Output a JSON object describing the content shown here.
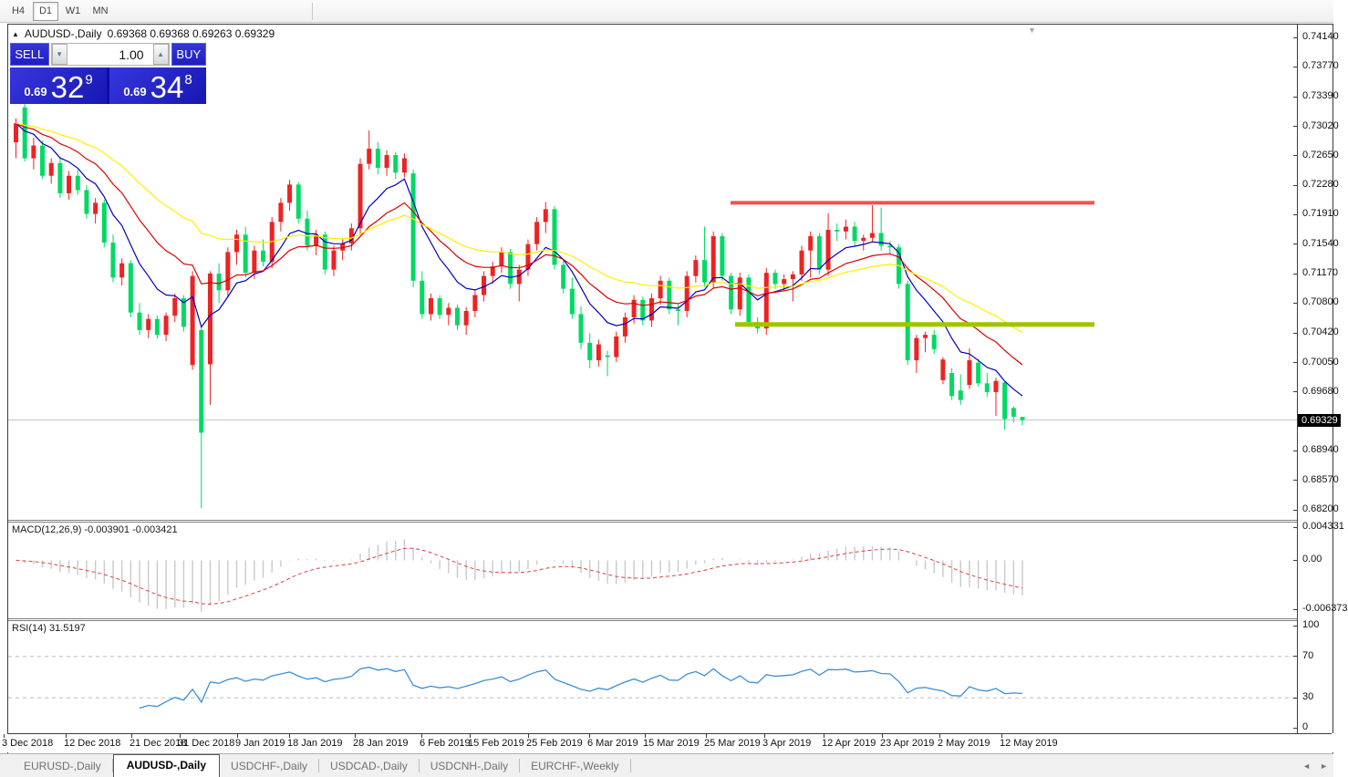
{
  "toolbar": {
    "timeframes": [
      {
        "label": "H4",
        "active": false
      },
      {
        "label": "D1",
        "active": true
      },
      {
        "label": "W1",
        "active": false
      },
      {
        "label": "MN",
        "active": false
      }
    ]
  },
  "chart": {
    "collapse_icon": "▲",
    "shift_icon": "▼",
    "symbol": "AUDUSD-,Daily",
    "ohlc_text": "0.69368 0.69368 0.69263 0.69329",
    "trade_panel": {
      "sell_label": "SELL",
      "buy_label": "BUY",
      "volume": "1.00",
      "spin_down_icon": "▼",
      "spin_up_icon": "▲",
      "sell_price_big": "0.69",
      "sell_price_mid": "32",
      "sell_price_sup": "9",
      "buy_price_big": "0.69",
      "buy_price_mid": "34",
      "buy_price_sup": "8"
    }
  },
  "price_axis": {
    "labels": [
      {
        "text": "0.74140",
        "value": 0.7414
      },
      {
        "text": "0.73770",
        "value": 0.7377
      },
      {
        "text": "0.73390",
        "value": 0.7339
      },
      {
        "text": "0.73020",
        "value": 0.7302
      },
      {
        "text": "0.72650",
        "value": 0.7265
      },
      {
        "text": "0.72280",
        "value": 0.7228
      },
      {
        "text": "0.71910",
        "value": 0.7191
      },
      {
        "text": "0.71540",
        "value": 0.7154
      },
      {
        "text": "0.71170",
        "value": 0.7117
      },
      {
        "text": "0.70800",
        "value": 0.708
      },
      {
        "text": "0.70420",
        "value": 0.7042
      },
      {
        "text": "0.70050",
        "value": 0.7005
      },
      {
        "text": "0.69680",
        "value": 0.6968
      },
      {
        "text": "0.68940",
        "value": 0.6894
      },
      {
        "text": "0.68570",
        "value": 0.6857
      },
      {
        "text": "0.68200",
        "value": 0.682
      }
    ],
    "current_badge": {
      "text": "0.69329",
      "value": 0.69329
    }
  },
  "macd_axis": [
    {
      "text": "0.004331",
      "value": 0.004331
    },
    {
      "text": "0.00",
      "value": 0
    },
    {
      "text": "-0.006373",
      "value": -0.006373
    }
  ],
  "rsi_axis": [
    {
      "text": "100",
      "value": 100
    },
    {
      "text": "70",
      "value": 70
    },
    {
      "text": "30",
      "value": 30
    },
    {
      "text": "0",
      "value": 0
    }
  ],
  "indicators": {
    "macd_label": "MACD(12,26,9) -0.003901 -0.003421",
    "rsi_label": "RSI(14) 31.5197"
  },
  "date_axis": [
    {
      "text": "3 Dec 2018",
      "x": 2
    },
    {
      "text": "12 Dec 2018",
      "x": 70
    },
    {
      "text": "21 Dec 2018",
      "x": 142
    },
    {
      "text": "31 Dec 2018",
      "x": 195
    },
    {
      "text": "9 Jan 2019",
      "x": 258
    },
    {
      "text": "18 Jan 2019",
      "x": 315
    },
    {
      "text": "28 Jan 2019",
      "x": 387
    },
    {
      "text": "6 Feb 2019",
      "x": 460
    },
    {
      "text": "15 Feb 2019",
      "x": 513
    },
    {
      "text": "25 Feb 2019",
      "x": 577
    },
    {
      "text": "6 Mar 2019",
      "x": 644
    },
    {
      "text": "15 Mar 2019",
      "x": 705
    },
    {
      "text": "25 Mar 2019",
      "x": 772
    },
    {
      "text": "3 Apr 2019",
      "x": 836
    },
    {
      "text": "12 Apr 2019",
      "x": 901
    },
    {
      "text": "23 Apr 2019",
      "x": 965
    },
    {
      "text": "2 May 2019",
      "x": 1028
    },
    {
      "text": "12 May 2019",
      "x": 1096
    }
  ],
  "tabs": [
    {
      "label": "EURUSD-,Daily",
      "active": false
    },
    {
      "label": "AUDUSD-,Daily",
      "active": true
    },
    {
      "label": "USDCHF-,Daily",
      "active": false
    },
    {
      "label": "USDCAD-,Daily",
      "active": false
    },
    {
      "label": "USDCNH-,Daily",
      "active": false
    },
    {
      "label": "EURCHF-,Weekly",
      "active": false
    }
  ],
  "tab_scroll": {
    "left_icon": "◄",
    "right_icon": "►"
  },
  "chart_data": {
    "type": "candlestick",
    "symbol": "AUDUSD",
    "timeframe": "Daily",
    "x_range": [
      "3 Dec 2018",
      "13 May 2019"
    ],
    "price_range": [
      0.682,
      0.7414
    ],
    "bull_color": "#ee2222",
    "bear_color": "#00d964",
    "candles": [
      [
        0.7282,
        0.7312,
        0.7262,
        0.7306
      ],
      [
        0.7326,
        0.7345,
        0.7258,
        0.7262
      ],
      [
        0.7262,
        0.7288,
        0.7248,
        0.7278
      ],
      [
        0.7278,
        0.7284,
        0.7236,
        0.724
      ],
      [
        0.724,
        0.7262,
        0.723,
        0.7256
      ],
      [
        0.7256,
        0.7262,
        0.7212,
        0.7218
      ],
      [
        0.7218,
        0.7246,
        0.721,
        0.724
      ],
      [
        0.724,
        0.7248,
        0.7216,
        0.7222
      ],
      [
        0.7222,
        0.7228,
        0.7186,
        0.7192
      ],
      [
        0.7192,
        0.7212,
        0.718,
        0.7206
      ],
      [
        0.7206,
        0.721,
        0.715,
        0.7156
      ],
      [
        0.7156,
        0.7166,
        0.7106,
        0.7112
      ],
      [
        0.7112,
        0.7136,
        0.7102,
        0.713
      ],
      [
        0.713,
        0.7134,
        0.7062,
        0.7068
      ],
      [
        0.7068,
        0.708,
        0.704,
        0.7046
      ],
      [
        0.7046,
        0.7066,
        0.7036,
        0.706
      ],
      [
        0.706,
        0.7064,
        0.7035,
        0.704
      ],
      [
        0.704,
        0.7068,
        0.7032,
        0.7064
      ],
      [
        0.7064,
        0.7092,
        0.7056,
        0.7086
      ],
      [
        0.7086,
        0.709,
        0.7044,
        0.705
      ],
      [
        0.7002,
        0.712,
        0.6996,
        0.7114
      ],
      [
        0.7046,
        0.705,
        0.6822,
        0.6917
      ],
      [
        0.7003,
        0.712,
        0.6952,
        0.7117
      ],
      [
        0.7117,
        0.713,
        0.708,
        0.7096
      ],
      [
        0.7096,
        0.715,
        0.7088,
        0.7144
      ],
      [
        0.7144,
        0.7172,
        0.7128,
        0.7166
      ],
      [
        0.7166,
        0.7176,
        0.7112,
        0.7118
      ],
      [
        0.7118,
        0.7152,
        0.711,
        0.7146
      ],
      [
        0.7146,
        0.716,
        0.7126,
        0.7132
      ],
      [
        0.7132,
        0.7188,
        0.7124,
        0.7182
      ],
      [
        0.7182,
        0.7212,
        0.717,
        0.7206
      ],
      [
        0.7206,
        0.7235,
        0.7196,
        0.7229
      ],
      [
        0.7229,
        0.7232,
        0.718,
        0.7186
      ],
      [
        0.7186,
        0.7196,
        0.7146,
        0.7152
      ],
      [
        0.7152,
        0.7172,
        0.714,
        0.7166
      ],
      [
        0.7166,
        0.717,
        0.7116,
        0.7122
      ],
      [
        0.7122,
        0.7152,
        0.7114,
        0.7146
      ],
      [
        0.7146,
        0.716,
        0.7134,
        0.7155
      ],
      [
        0.7155,
        0.718,
        0.7146,
        0.7174
      ],
      [
        0.7174,
        0.7262,
        0.7166,
        0.7255
      ],
      [
        0.7255,
        0.7297,
        0.7248,
        0.7274
      ],
      [
        0.7274,
        0.7282,
        0.7242,
        0.725
      ],
      [
        0.725,
        0.7272,
        0.724,
        0.7266
      ],
      [
        0.7266,
        0.727,
        0.7236,
        0.7244
      ],
      [
        0.7244,
        0.7268,
        0.7238,
        0.7262
      ],
      [
        0.7243,
        0.7248,
        0.71,
        0.7108
      ],
      [
        0.7108,
        0.712,
        0.706,
        0.7066
      ],
      [
        0.7066,
        0.7092,
        0.7058,
        0.7086
      ],
      [
        0.7086,
        0.709,
        0.706,
        0.7065
      ],
      [
        0.7065,
        0.708,
        0.7052,
        0.7074
      ],
      [
        0.7074,
        0.7078,
        0.7046,
        0.7052
      ],
      [
        0.7052,
        0.7075,
        0.704,
        0.707
      ],
      [
        0.707,
        0.7096,
        0.7062,
        0.709
      ],
      [
        0.709,
        0.712,
        0.7082,
        0.7114
      ],
      [
        0.7114,
        0.7132,
        0.7104,
        0.7126
      ],
      [
        0.7126,
        0.715,
        0.7118,
        0.7144
      ],
      [
        0.7144,
        0.7148,
        0.7098,
        0.7104
      ],
      [
        0.7104,
        0.7128,
        0.7082,
        0.7122
      ],
      [
        0.7122,
        0.716,
        0.7114,
        0.7154
      ],
      [
        0.7154,
        0.7188,
        0.7146,
        0.7182
      ],
      [
        0.7182,
        0.7207,
        0.7168,
        0.7198
      ],
      [
        0.7198,
        0.7202,
        0.7122,
        0.7128
      ],
      [
        0.7128,
        0.7136,
        0.7092,
        0.7098
      ],
      [
        0.7098,
        0.7112,
        0.706,
        0.7066
      ],
      [
        0.7066,
        0.7076,
        0.7022,
        0.703
      ],
      [
        0.703,
        0.7042,
        0.6998,
        0.7008
      ],
      [
        0.7008,
        0.7034,
        0.7,
        0.7028
      ],
      [
        0.7014,
        0.702,
        0.6988,
        0.7012
      ],
      [
        0.7012,
        0.7044,
        0.7006,
        0.7038
      ],
      [
        0.7038,
        0.7068,
        0.703,
        0.7062
      ],
      [
        0.7062,
        0.709,
        0.7054,
        0.7084
      ],
      [
        0.7084,
        0.7088,
        0.7052,
        0.7058
      ],
      [
        0.7058,
        0.7092,
        0.705,
        0.7086
      ],
      [
        0.7086,
        0.7114,
        0.7078,
        0.7108
      ],
      [
        0.7108,
        0.7112,
        0.7066,
        0.7072
      ],
      [
        0.7072,
        0.7078,
        0.7052,
        0.707
      ],
      [
        0.707,
        0.712,
        0.7062,
        0.7114
      ],
      [
        0.7114,
        0.714,
        0.7106,
        0.7134
      ],
      [
        0.7134,
        0.7176,
        0.71,
        0.7106
      ],
      [
        0.7106,
        0.717,
        0.7098,
        0.7164
      ],
      [
        0.7164,
        0.7168,
        0.7108,
        0.7114
      ],
      [
        0.7114,
        0.7118,
        0.7066,
        0.7072
      ],
      [
        0.7072,
        0.7118,
        0.7064,
        0.7112
      ],
      [
        0.7112,
        0.7116,
        0.705,
        0.7056
      ],
      [
        0.7056,
        0.7062,
        0.7042,
        0.7048
      ],
      [
        0.7048,
        0.7124,
        0.704,
        0.7118
      ],
      [
        0.7118,
        0.7122,
        0.7098,
        0.7104
      ],
      [
        0.7104,
        0.7116,
        0.7096,
        0.711
      ],
      [
        0.711,
        0.712,
        0.7082,
        0.7116
      ],
      [
        0.7116,
        0.7152,
        0.7108,
        0.7146
      ],
      [
        0.7146,
        0.717,
        0.7112,
        0.7164
      ],
      [
        0.7164,
        0.7168,
        0.7116,
        0.7122
      ],
      [
        0.7122,
        0.7193,
        0.7114,
        0.7172
      ],
      [
        0.7172,
        0.718,
        0.7158,
        0.717
      ],
      [
        0.717,
        0.7185,
        0.716,
        0.7176
      ],
      [
        0.7176,
        0.7182,
        0.7152,
        0.7158
      ],
      [
        0.7158,
        0.7166,
        0.7146,
        0.7162
      ],
      [
        0.7162,
        0.7203,
        0.7156,
        0.7168
      ],
      [
        0.7168,
        0.72,
        0.7146,
        0.7152
      ],
      [
        0.7152,
        0.7158,
        0.7142,
        0.715
      ],
      [
        0.715,
        0.7154,
        0.7098,
        0.7104
      ],
      [
        0.7104,
        0.7108,
        0.7002,
        0.7008
      ],
      [
        0.7008,
        0.704,
        0.6992,
        0.7036
      ],
      [
        0.7036,
        0.7044,
        0.7018,
        0.704
      ],
      [
        0.704,
        0.7046,
        0.7016,
        0.7022
      ],
      [
        0.6983,
        0.7012,
        0.6978,
        0.7009
      ],
      [
        0.6992,
        0.6998,
        0.6958,
        0.6963
      ],
      [
        0.697,
        0.699,
        0.6952,
        0.6958
      ],
      [
        0.6977,
        0.7023,
        0.6972,
        0.7008
      ],
      [
        0.7005,
        0.701,
        0.6975,
        0.6979
      ],
      [
        0.6979,
        0.6992,
        0.6962,
        0.6968
      ],
      [
        0.6968,
        0.6986,
        0.6938,
        0.6982
      ],
      [
        0.698,
        0.6982,
        0.6921,
        0.6934
      ],
      [
        0.6948,
        0.695,
        0.693,
        0.6937
      ],
      [
        0.69368,
        0.69368,
        0.69263,
        0.69329
      ]
    ],
    "moving_averages": [
      {
        "type": "ema",
        "period": 8,
        "color": "#0000bb"
      },
      {
        "type": "ema",
        "period": 17,
        "color": "#dd0000"
      },
      {
        "type": "ema",
        "period": 34,
        "color": "#ffee00"
      }
    ],
    "levels": [
      {
        "name": "resistance",
        "price": 0.7206,
        "x1": 792,
        "x2": 1191,
        "color": "#f25050",
        "width": 4
      },
      {
        "name": "support",
        "price": 0.7053,
        "x1": 797,
        "x2": 1191,
        "color": "#a0c400",
        "width": 5
      }
    ],
    "bid_line": {
      "price": 0.69329,
      "color": "#c8c8c8"
    },
    "macd": {
      "fast": 12,
      "slow": 26,
      "signal": 9,
      "current": -0.003901,
      "current_signal": -0.003421,
      "range": [
        -0.006373,
        0.004331
      ],
      "histogram_color": "#c9c9c9",
      "signal_color": "#e04040"
    },
    "rsi": {
      "period": 14,
      "current": 31.5197,
      "range": [
        0,
        100
      ],
      "levels": [
        30,
        70
      ],
      "color": "#3a8fd6"
    }
  }
}
